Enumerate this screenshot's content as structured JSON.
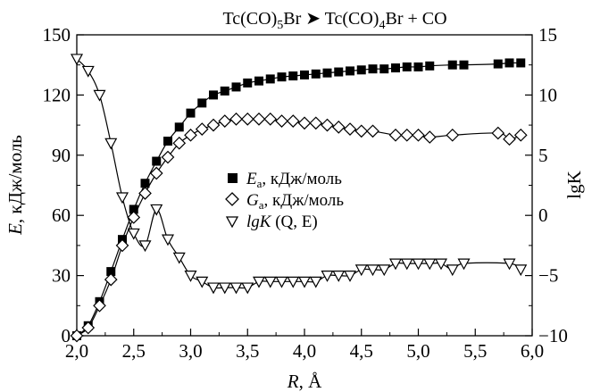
{
  "chart_data": {
    "type": "line",
    "title": {
      "part1": "Tc(CO)",
      "sub1": "5",
      "part2": "Br ",
      "arrow": "➤",
      "part3": " Tc(CO)",
      "sub2": "4",
      "part4": "Br + CO"
    },
    "xlabel": {
      "var": "R",
      "unit": ", Å"
    },
    "ylabel_left": {
      "var": "E",
      "unit": ", кДж/моль"
    },
    "ylabel_right": {
      "var": "lgK"
    },
    "xlim": [
      2.0,
      6.0
    ],
    "ylim_left": [
      0,
      150
    ],
    "ylim_right": [
      -10,
      15
    ],
    "x_ticks": [
      "2,0",
      "2,5",
      "3,0",
      "3,5",
      "4,0",
      "4,5",
      "5,0",
      "5,5",
      "6,0"
    ],
    "x_tick_values": [
      2.0,
      2.5,
      3.0,
      3.5,
      4.0,
      4.5,
      5.0,
      5.5,
      6.0
    ],
    "y_ticks_left": [
      "0",
      "30",
      "60",
      "90",
      "120",
      "150"
    ],
    "y_tick_values_left": [
      0,
      30,
      60,
      90,
      120,
      150
    ],
    "y_ticks_right": [
      "−10",
      "−5",
      "0",
      "5",
      "10",
      "15"
    ],
    "y_tick_values_right": [
      -10,
      -5,
      0,
      5,
      10,
      15
    ],
    "grid": false,
    "legend_position": "center",
    "series": [
      {
        "key": "Ea",
        "name": {
          "var": "E",
          "sub": "a",
          "rest": ", кДж/моль"
        },
        "marker": "filled-square",
        "axis": "left",
        "color": "#000000",
        "x": [
          2.0,
          2.1,
          2.2,
          2.3,
          2.4,
          2.5,
          2.6,
          2.7,
          2.8,
          2.9,
          3.0,
          3.1,
          3.2,
          3.3,
          3.4,
          3.5,
          3.6,
          3.7,
          3.8,
          3.9,
          4.0,
          4.1,
          4.2,
          4.3,
          4.4,
          4.5,
          4.6,
          4.7,
          4.8,
          4.9,
          5.0,
          5.1,
          5.3,
          5.4,
          5.7,
          5.8,
          5.9
        ],
        "y": [
          0,
          5,
          17,
          32,
          48,
          63,
          76,
          87,
          97,
          104,
          111,
          116,
          120,
          122,
          124,
          126,
          127,
          128,
          129,
          129.5,
          130,
          130.5,
          131,
          131.5,
          132,
          132.5,
          133,
          133,
          133.5,
          134,
          134,
          134.5,
          135,
          135,
          135.5,
          136,
          136
        ]
      },
      {
        "key": "Ga",
        "name": {
          "var": "G",
          "sub": "a",
          "rest": ", кДж/моль"
        },
        "marker": "open-diamond",
        "axis": "left",
        "color": "#000000",
        "x": [
          2.0,
          2.1,
          2.2,
          2.3,
          2.4,
          2.5,
          2.6,
          2.7,
          2.8,
          2.9,
          3.0,
          3.1,
          3.2,
          3.3,
          3.4,
          3.5,
          3.6,
          3.7,
          3.8,
          3.9,
          4.0,
          4.1,
          4.2,
          4.3,
          4.4,
          4.5,
          4.6,
          4.8,
          4.9,
          5.0,
          5.1,
          5.3,
          5.7,
          5.8,
          5.9
        ],
        "y": [
          0,
          4,
          15,
          28,
          45,
          59,
          71,
          81,
          89,
          96,
          100,
          103,
          105,
          107,
          108,
          108,
          108,
          108,
          107,
          107,
          106,
          106,
          105,
          104,
          103,
          102,
          102,
          100,
          100,
          100,
          99,
          100,
          101,
          98,
          100
        ]
      },
      {
        "key": "lgK",
        "name": {
          "var": "lgK",
          "rest": " (Q, E)"
        },
        "marker": "open-triangle-down",
        "axis": "right",
        "color": "#000000",
        "x": [
          2.0,
          2.1,
          2.2,
          2.3,
          2.4,
          2.5,
          2.6,
          2.7,
          2.8,
          2.9,
          3.0,
          3.1,
          3.2,
          3.3,
          3.4,
          3.5,
          3.6,
          3.7,
          3.8,
          3.9,
          4.0,
          4.1,
          4.2,
          4.3,
          4.4,
          4.5,
          4.6,
          4.7,
          4.8,
          4.9,
          5.0,
          5.1,
          5.2,
          5.3,
          5.4,
          5.8,
          5.9
        ],
        "y": [
          13,
          12,
          10,
          6,
          1.5,
          -1.5,
          -2.5,
          0.5,
          -2,
          -3.5,
          -5,
          -5.5,
          -6,
          -6,
          -6,
          -6,
          -5.5,
          -5.5,
          -5.5,
          -5.5,
          -5.5,
          -5.5,
          -5,
          -5,
          -5,
          -4.5,
          -4.5,
          -4.5,
          -4,
          -4,
          -4,
          -4,
          -4,
          -4.5,
          -4,
          -4,
          -4.5
        ]
      }
    ]
  }
}
